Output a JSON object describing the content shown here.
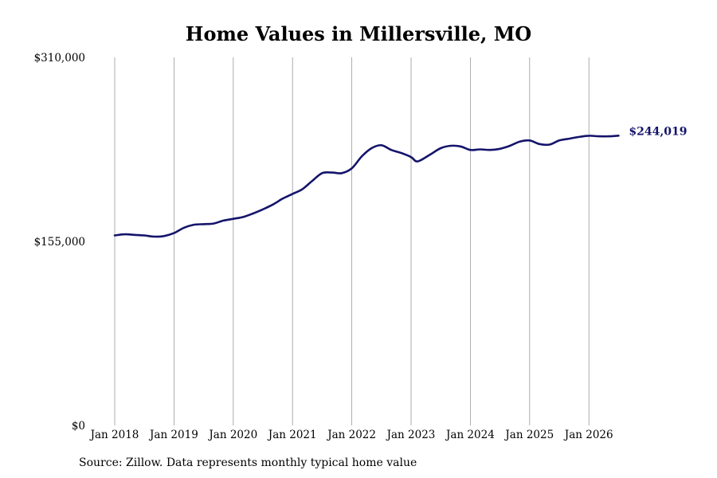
{
  "chart_data": {
    "type": "line",
    "title": "Home Values in Millersville, MO",
    "source_note": "Source: Zillow. Data represents monthly typical home value",
    "xlabel": "",
    "ylabel": "",
    "ylim": [
      0,
      310000
    ],
    "xlim": [
      "2018-01",
      "2026-07"
    ],
    "y_ticks": [
      {
        "value": 310000,
        "label": "$310,000"
      },
      {
        "value": 155000,
        "label": "$155,000"
      },
      {
        "value": 0,
        "label": "$0"
      }
    ],
    "x_ticks": [
      {
        "value": "2018-01",
        "label": "Jan 2018"
      },
      {
        "value": "2019-01",
        "label": "Jan 2019"
      },
      {
        "value": "2020-01",
        "label": "Jan 2020"
      },
      {
        "value": "2021-01",
        "label": "Jan 2021"
      },
      {
        "value": "2022-01",
        "label": "Jan 2022"
      },
      {
        "value": "2023-01",
        "label": "Jan 2023"
      },
      {
        "value": "2024-01",
        "label": "Jan 2024"
      },
      {
        "value": "2025-01",
        "label": "Jan 2025"
      },
      {
        "value": "2026-01",
        "label": "Jan 2026"
      }
    ],
    "vertical_grid": true,
    "line_color": "#14146b",
    "grid_color": "#999999",
    "end_label": "$244,019",
    "series": [
      {
        "color": "#14146b",
        "points": [
          [
            "2018-01",
            160000
          ],
          [
            "2018-03",
            161000
          ],
          [
            "2018-05",
            160500
          ],
          [
            "2018-07",
            160000
          ],
          [
            "2018-09",
            159000
          ],
          [
            "2018-11",
            159500
          ],
          [
            "2019-01",
            162000
          ],
          [
            "2019-03",
            166500
          ],
          [
            "2019-05",
            169000
          ],
          [
            "2019-07",
            169500
          ],
          [
            "2019-09",
            170000
          ],
          [
            "2019-11",
            172500
          ],
          [
            "2020-01",
            174000
          ],
          [
            "2020-03",
            175500
          ],
          [
            "2020-05",
            178500
          ],
          [
            "2020-07",
            182000
          ],
          [
            "2020-09",
            186000
          ],
          [
            "2020-11",
            191000
          ],
          [
            "2021-01",
            195000
          ],
          [
            "2021-03",
            199000
          ],
          [
            "2021-05",
            206000
          ],
          [
            "2021-07",
            212500
          ],
          [
            "2021-09",
            213000
          ],
          [
            "2021-11",
            212500
          ],
          [
            "2022-01",
            216500
          ],
          [
            "2022-03",
            226500
          ],
          [
            "2022-05",
            233500
          ],
          [
            "2022-07",
            236000
          ],
          [
            "2022-09",
            232000
          ],
          [
            "2022-11",
            229500
          ],
          [
            "2023-01",
            226000
          ],
          [
            "2023-02",
            222500
          ],
          [
            "2023-03",
            223500
          ],
          [
            "2023-05",
            228500
          ],
          [
            "2023-07",
            233500
          ],
          [
            "2023-09",
            235500
          ],
          [
            "2023-11",
            235000
          ],
          [
            "2024-01",
            232000
          ],
          [
            "2024-03",
            232500
          ],
          [
            "2024-05",
            232000
          ],
          [
            "2024-07",
            233000
          ],
          [
            "2024-09",
            235500
          ],
          [
            "2024-11",
            239000
          ],
          [
            "2025-01",
            240000
          ],
          [
            "2025-03",
            237000
          ],
          [
            "2025-05",
            236500
          ],
          [
            "2025-07",
            240000
          ],
          [
            "2025-09",
            241500
          ],
          [
            "2025-11",
            243000
          ],
          [
            "2026-01",
            244000
          ],
          [
            "2026-03",
            243500
          ],
          [
            "2026-05",
            243500
          ],
          [
            "2026-07",
            244019
          ]
        ]
      }
    ]
  }
}
